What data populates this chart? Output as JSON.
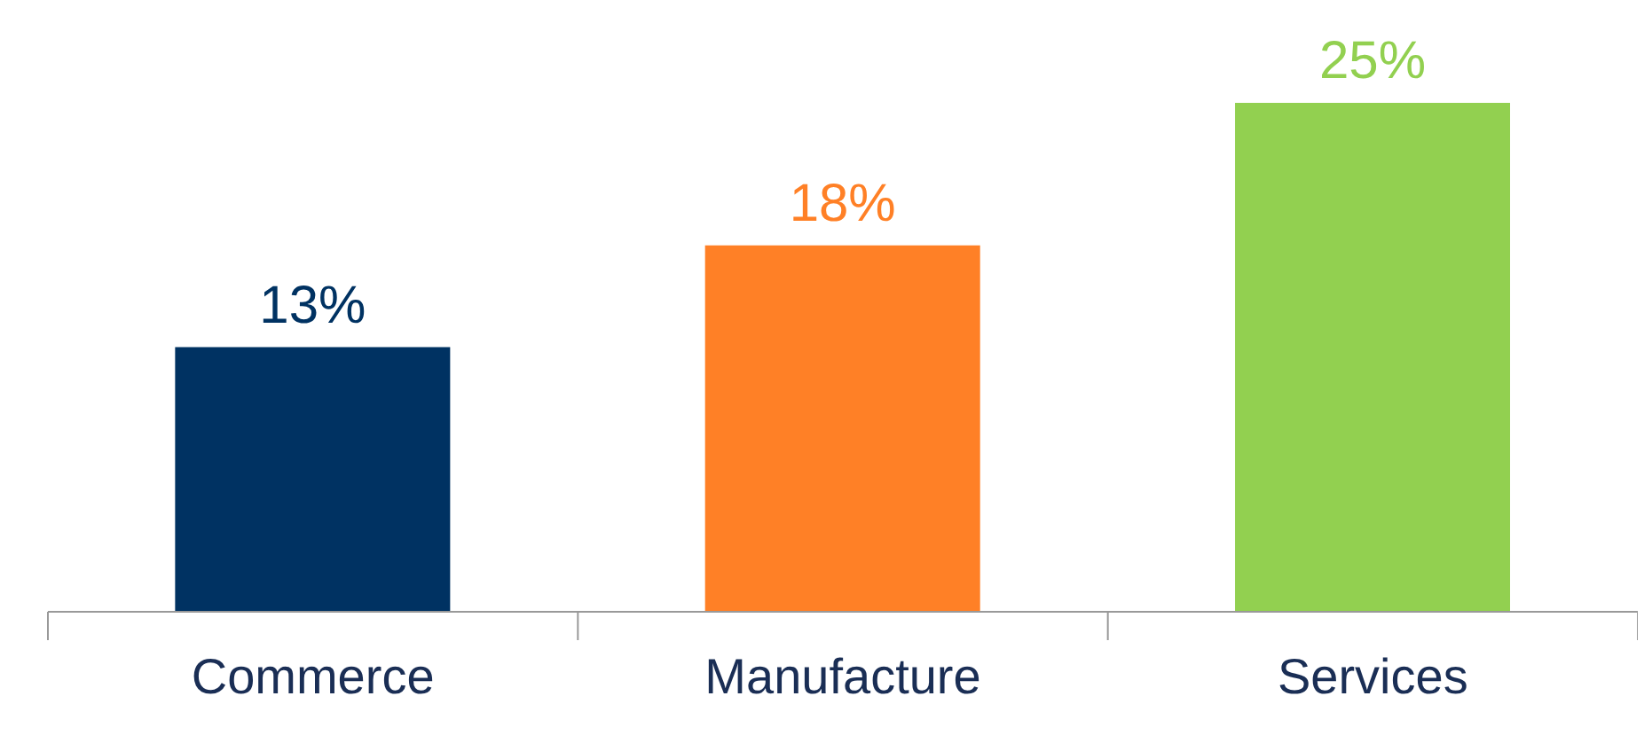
{
  "chart_data": {
    "type": "bar",
    "categories": [
      "Commerce",
      "Manufacture",
      "Services"
    ],
    "values": [
      13,
      18,
      25
    ],
    "colors": [
      "#003262",
      "#ff8026",
      "#92d050"
    ],
    "value_labels": [
      "13%",
      "18%",
      "25%"
    ]
  }
}
